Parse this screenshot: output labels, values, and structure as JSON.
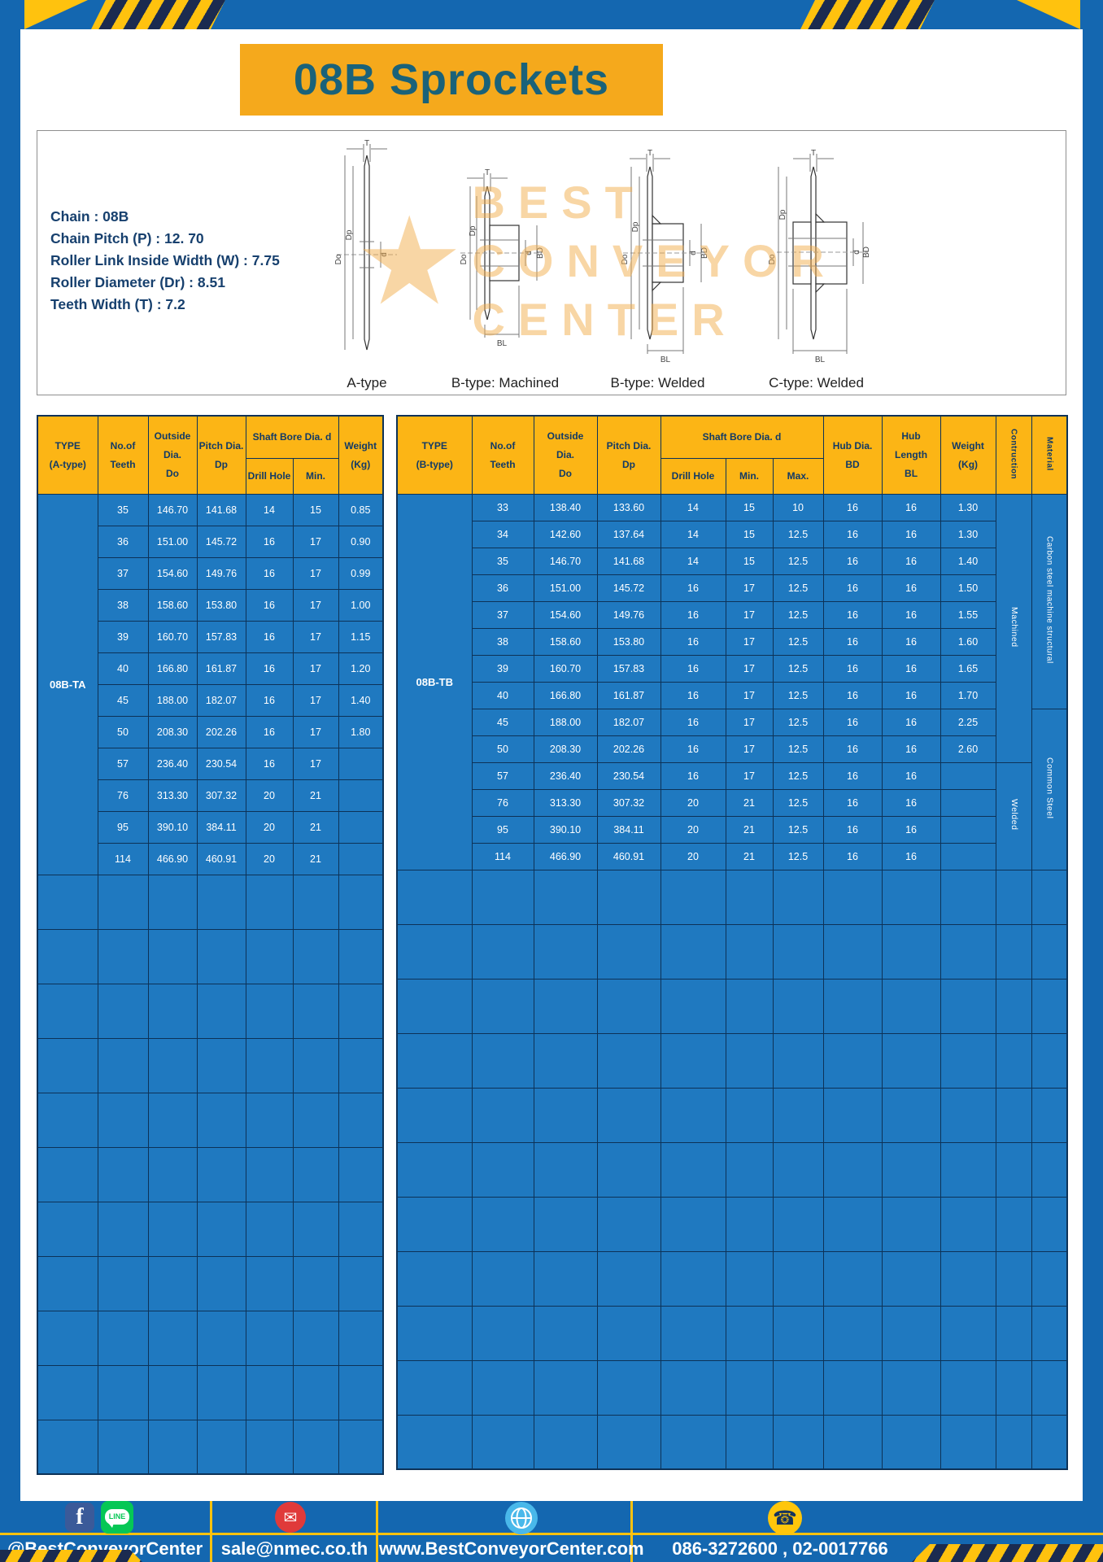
{
  "title": "08B Sprockets",
  "specs": {
    "lines": [
      "Chain : 08B",
      "Chain Pitch (P) : 12. 70",
      "Roller Link Inside Width (W) : 7.75",
      "Roller Diameter (Dr) : 8.51",
      "Teeth Width (T) : 7.2"
    ]
  },
  "diagrams": {
    "dims": {
      "t": "T",
      "outer": "Do",
      "pitch": "Dp",
      "bore": "d",
      "hub": "BD",
      "hublen": "BL"
    },
    "labels": [
      "A-type",
      "B-type: Machined",
      "B-type: Welded",
      "C-type: Welded"
    ]
  },
  "watermark": {
    "star": "★",
    "line1": "BEST",
    "line2": "CONVEYOR",
    "line3": "CENTER"
  },
  "table_a": {
    "header": {
      "type1": "TYPE",
      "type2": "(A-type)",
      "teeth1": "No.of",
      "teeth2": "Teeth",
      "out1": "Outside",
      "out2": "Dia.",
      "out3": "Do",
      "pitch1": "Pitch Dia.",
      "pitch2": "Dp",
      "bore": "Shaft Bore Dia. d",
      "drill": "Drill Hole",
      "min": "Min.",
      "weight1": "Weight",
      "weight2": "(Kg)"
    },
    "type_value": "08B-TA",
    "rows": [
      {
        "t": "35",
        "do": "146.70",
        "dp": "141.68",
        "dr": "14",
        "mn": "15",
        "w": "0.85"
      },
      {
        "t": "36",
        "do": "151.00",
        "dp": "145.72",
        "dr": "16",
        "mn": "17",
        "w": "0.90"
      },
      {
        "t": "37",
        "do": "154.60",
        "dp": "149.76",
        "dr": "16",
        "mn": "17",
        "w": "0.99"
      },
      {
        "t": "38",
        "do": "158.60",
        "dp": "153.80",
        "dr": "16",
        "mn": "17",
        "w": "1.00"
      },
      {
        "t": "39",
        "do": "160.70",
        "dp": "157.83",
        "dr": "16",
        "mn": "17",
        "w": "1.15"
      },
      {
        "t": "40",
        "do": "166.80",
        "dp": "161.87",
        "dr": "16",
        "mn": "17",
        "w": "1.20"
      },
      {
        "t": "45",
        "do": "188.00",
        "dp": "182.07",
        "dr": "16",
        "mn": "17",
        "w": "1.40"
      },
      {
        "t": "50",
        "do": "208.30",
        "dp": "202.26",
        "dr": "16",
        "mn": "17",
        "w": "1.80"
      },
      {
        "t": "57",
        "do": "236.40",
        "dp": "230.54",
        "dr": "16",
        "mn": "17",
        "w": ""
      },
      {
        "t": "76",
        "do": "313.30",
        "dp": "307.32",
        "dr": "20",
        "mn": "21",
        "w": ""
      },
      {
        "t": "95",
        "do": "390.10",
        "dp": "384.11",
        "dr": "20",
        "mn": "21",
        "w": ""
      },
      {
        "t": "114",
        "do": "466.90",
        "dp": "460.91",
        "dr": "20",
        "mn": "21",
        "w": ""
      }
    ]
  },
  "table_b": {
    "header": {
      "type1": "TYPE",
      "type2": "(B-type)",
      "teeth1": "No.of",
      "teeth2": "Teeth",
      "out1": "Outside",
      "out2": "Dia.",
      "out3": "Do",
      "pitch1": "Pitch Dia.",
      "pitch2": "Dp",
      "bore": "Shaft Bore Dia. d",
      "drill": "Drill Hole",
      "min": "Min.",
      "max": "Max.",
      "hubd1": "Hub Dia.",
      "hubd2": "BD",
      "hubl1": "Hub",
      "hubl2": "Length",
      "hubl3": "BL",
      "weight1": "Weight",
      "weight2": "(Kg)",
      "constr": "Contruction",
      "mat": "Material"
    },
    "type_value": "08B-TB",
    "rows": [
      {
        "t": "33",
        "do": "138.40",
        "dp": "133.60",
        "dr": "14",
        "mn": "15",
        "mx": "10",
        "bd": "16",
        "bl": "16",
        "w": "1.30"
      },
      {
        "t": "34",
        "do": "142.60",
        "dp": "137.64",
        "dr": "14",
        "mn": "15",
        "mx": "12.5",
        "bd": "16",
        "bl": "16",
        "w": "1.30"
      },
      {
        "t": "35",
        "do": "146.70",
        "dp": "141.68",
        "dr": "14",
        "mn": "15",
        "mx": "12.5",
        "bd": "16",
        "bl": "16",
        "w": "1.40"
      },
      {
        "t": "36",
        "do": "151.00",
        "dp": "145.72",
        "dr": "16",
        "mn": "17",
        "mx": "12.5",
        "bd": "16",
        "bl": "16",
        "w": "1.50"
      },
      {
        "t": "37",
        "do": "154.60",
        "dp": "149.76",
        "dr": "16",
        "mn": "17",
        "mx": "12.5",
        "bd": "16",
        "bl": "16",
        "w": "1.55"
      },
      {
        "t": "38",
        "do": "158.60",
        "dp": "153.80",
        "dr": "16",
        "mn": "17",
        "mx": "12.5",
        "bd": "16",
        "bl": "16",
        "w": "1.60"
      },
      {
        "t": "39",
        "do": "160.70",
        "dp": "157.83",
        "dr": "16",
        "mn": "17",
        "mx": "12.5",
        "bd": "16",
        "bl": "16",
        "w": "1.65"
      },
      {
        "t": "40",
        "do": "166.80",
        "dp": "161.87",
        "dr": "16",
        "mn": "17",
        "mx": "12.5",
        "bd": "16",
        "bl": "16",
        "w": "1.70"
      },
      {
        "t": "45",
        "do": "188.00",
        "dp": "182.07",
        "dr": "16",
        "mn": "17",
        "mx": "12.5",
        "bd": "16",
        "bl": "16",
        "w": "2.25"
      },
      {
        "t": "50",
        "do": "208.30",
        "dp": "202.26",
        "dr": "16",
        "mn": "17",
        "mx": "12.5",
        "bd": "16",
        "bl": "16",
        "w": "2.60"
      },
      {
        "t": "57",
        "do": "236.40",
        "dp": "230.54",
        "dr": "16",
        "mn": "17",
        "mx": "12.5",
        "bd": "16",
        "bl": "16",
        "w": ""
      },
      {
        "t": "76",
        "do": "313.30",
        "dp": "307.32",
        "dr": "20",
        "mn": "21",
        "mx": "12.5",
        "bd": "16",
        "bl": "16",
        "w": ""
      },
      {
        "t": "95",
        "do": "390.10",
        "dp": "384.11",
        "dr": "20",
        "mn": "21",
        "mx": "12.5",
        "bd": "16",
        "bl": "16",
        "w": ""
      },
      {
        "t": "114",
        "do": "466.90",
        "dp": "460.91",
        "dr": "20",
        "mn": "21",
        "mx": "12.5",
        "bd": "16",
        "bl": "16",
        "w": ""
      }
    ],
    "construction": {
      "machined": "Machined",
      "welded": "Welded"
    },
    "material": {
      "carbon": "Carbon steel  machine structural",
      "common": "Common  Steel"
    }
  },
  "footer": {
    "fb_label": "f",
    "line_label": "LINE",
    "handle": "@BestConveyorCenter",
    "email": "sale@nmec.co.th",
    "website": "www.BestConveyorCenter.com",
    "phones": "086-3272600 , 02-0017766"
  }
}
